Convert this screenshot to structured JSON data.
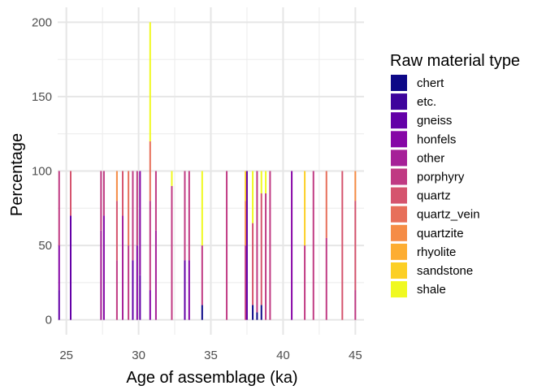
{
  "chart_data": {
    "type": "bar",
    "stacked": true,
    "xlabel": "Age of assemblage (ka)",
    "ylabel": "Percentage",
    "xlim": [
      24.4,
      45.6
    ],
    "ylim": [
      -10,
      210
    ],
    "x_ticks": [
      "25",
      "30",
      "35",
      "40",
      "45"
    ],
    "y_ticks": [
      "0",
      "50",
      "100",
      "150",
      "200"
    ],
    "grid": true,
    "legend": {
      "title": "Raw material type",
      "position": "right",
      "items": [
        "chert",
        "etc.",
        "gneiss",
        "honfels",
        "other",
        "porphyry",
        "quartz",
        "quartz_vein",
        "quartzite",
        "rhyolite",
        "sandstone",
        "shale"
      ]
    },
    "colors": {
      "chert": "#0D0887",
      "etc.": "#3E049C",
      "gneiss": "#6300A7",
      "honfels": "#8606A6",
      "other": "#A62098",
      "porphyry": "#C03A83",
      "quartz": "#D5546E",
      "quartz_vein": "#E76F5A",
      "quartzite": "#F58C46",
      "rhyolite": "#FDAD32",
      "sandstone": "#FCCF25",
      "shale": "#F0F921"
    },
    "series": [
      {
        "age": 24.5,
        "values": {
          "gneiss": 20,
          "honfels": 30,
          "porphyry": 50
        }
      },
      {
        "age": 25.3,
        "values": {
          "gneiss": 70,
          "quartz": 30
        }
      },
      {
        "age": 27.4,
        "values": {
          "other": 60,
          "porphyry": 40
        }
      },
      {
        "age": 27.6,
        "values": {
          "honfels": 70,
          "porphyry": 30
        }
      },
      {
        "age": 28.5,
        "values": {
          "porphyry": 40,
          "quartz": 40,
          "quartzite": 20
        }
      },
      {
        "age": 28.9,
        "values": {
          "other": 70,
          "quartz": 30
        }
      },
      {
        "age": 29.3,
        "values": {
          "porphyry": 50,
          "quartz_vein": 50
        }
      },
      {
        "age": 29.6,
        "values": {
          "gneiss": 40,
          "porphyry": 60
        }
      },
      {
        "age": 29.9,
        "values": {
          "honfels": 50,
          "porphyry": 50
        }
      },
      {
        "age": 30.1,
        "values": {
          "gneiss": 30,
          "honfels": 70
        }
      },
      {
        "age": 30.8,
        "values": {
          "shale": 80,
          "quartz_vein": 40,
          "porphyry": 60,
          "honfels": 20
        }
      },
      {
        "age": 31.2,
        "values": {
          "other": 60,
          "porphyry": 40
        }
      },
      {
        "age": 32.3,
        "values": {
          "shale": 10,
          "porphyry": 90
        }
      },
      {
        "age": 33.2,
        "values": {
          "gneiss": 40,
          "porphyry": 60
        }
      },
      {
        "age": 33.5,
        "values": {
          "honfels": 40,
          "porphyry": 60
        }
      },
      {
        "age": 34.4,
        "values": {
          "chert": 10,
          "porphyry": 40,
          "shale": 50
        }
      },
      {
        "age": 36.1,
        "values": {
          "porphyry": 100
        }
      },
      {
        "age": 37.4,
        "values": {
          "sandstone": 20,
          "quartzite": 30,
          "porphyry": 50
        }
      },
      {
        "age": 37.5,
        "values": {
          "gneiss": 100
        }
      },
      {
        "age": 37.9,
        "values": {
          "shale": 35,
          "quartz": 55,
          "chert": 10
        }
      },
      {
        "age": 38.2,
        "values": {
          "porphyry": 95,
          "chert": 5
        }
      },
      {
        "age": 38.5,
        "values": {
          "shale": 15,
          "quartz": 75,
          "chert": 10
        }
      },
      {
        "age": 38.8,
        "values": {
          "shale": 15,
          "porphyry": 85
        }
      },
      {
        "age": 39.1,
        "values": {
          "porphyry": 100
        }
      },
      {
        "age": 40.6,
        "values": {
          "honfels": 100
        }
      },
      {
        "age": 41.5,
        "values": {
          "sandstone": 50,
          "porphyry": 50
        }
      },
      {
        "age": 42.1,
        "values": {
          "porphyry": 100
        }
      },
      {
        "age": 43.0,
        "values": {
          "quartz_vein": 45,
          "porphyry": 55
        }
      },
      {
        "age": 44.1,
        "values": {
          "quartz": 100
        }
      },
      {
        "age": 45.0,
        "values": {
          "quartzite": 20,
          "quartz": 60,
          "porphyry": 20
        }
      }
    ]
  }
}
